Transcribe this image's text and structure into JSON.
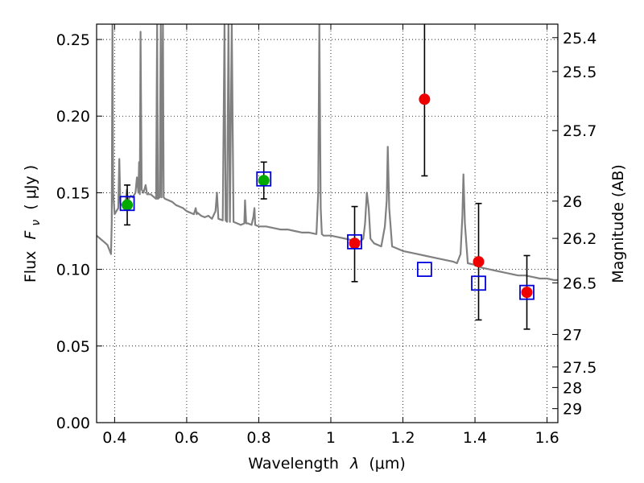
{
  "chart_data": {
    "type": "scatter",
    "title": "",
    "xlabel_text": "Wavelength",
    "xlabel_symbol": "λ",
    "xlabel_unit": "(μm)",
    "ylabel_text": "Flux",
    "ylabel_symbol": "F",
    "ylabel_symbol_sub": "ν",
    "ylabel_unit": "( μJy )",
    "y2label": "Magnitude (AB)",
    "xlim": [
      0.35,
      1.63
    ],
    "ylim": [
      0.0,
      0.26
    ],
    "grid": true,
    "grid_style": "dotted",
    "x_ticks": [
      0.4,
      0.6,
      0.8,
      1.0,
      1.2,
      1.4,
      1.6
    ],
    "x_tick_labels": [
      "0.4",
      "0.6",
      "0.8",
      "1",
      "1.2",
      "1.4",
      "1.6"
    ],
    "y_ticks": [
      0.0,
      0.05,
      0.1,
      0.15,
      0.2,
      0.25
    ],
    "y_tick_labels": [
      "0.00",
      "0.05",
      "0.10",
      "0.15",
      "0.20",
      "0.25"
    ],
    "y2_tick_labels": [
      "25.4",
      "25.5",
      "25.7",
      "26",
      "26.2",
      "26.5",
      "27",
      "27.5",
      "28",
      "29"
    ],
    "y2_tick_values": [
      25.4,
      25.5,
      25.7,
      26,
      26.2,
      26.5,
      27,
      27.5,
      28,
      29
    ],
    "colors": {
      "model": "#808080",
      "red": "#ee0000",
      "green": "#00aa00",
      "blue": "#0000dd",
      "errorbar": "#000000"
    },
    "series": [
      {
        "marker": "red-circle",
        "points": [
          {
            "x": 1.066,
            "y": 0.117,
            "yerr_low": 0.092,
            "yerr_high": 0.141
          },
          {
            "x": 1.26,
            "y": 0.211,
            "yerr_low": 0.161,
            "yerr_high": 0.261
          },
          {
            "x": 1.41,
            "y": 0.105,
            "yerr_low": 0.067,
            "yerr_high": 0.143
          },
          {
            "x": 1.544,
            "y": 0.085,
            "yerr_low": 0.061,
            "yerr_high": 0.109
          }
        ]
      },
      {
        "marker": "green-circle",
        "points": [
          {
            "x": 0.435,
            "y": 0.142,
            "yerr_low": 0.129,
            "yerr_high": 0.155
          },
          {
            "x": 0.814,
            "y": 0.158,
            "yerr_low": 0.146,
            "yerr_high": 0.17
          }
        ]
      },
      {
        "marker": "blue-open-square",
        "points": [
          {
            "x": 0.435,
            "y": 0.143
          },
          {
            "x": 0.814,
            "y": 0.159
          },
          {
            "x": 1.066,
            "y": 0.118
          },
          {
            "x": 1.26,
            "y": 0.1
          },
          {
            "x": 1.41,
            "y": 0.091
          },
          {
            "x": 1.544,
            "y": 0.085
          }
        ]
      },
      {
        "marker": "grey-line",
        "points": [
          [
            0.35,
            0.122
          ],
          [
            0.36,
            0.12
          ],
          [
            0.37,
            0.118
          ],
          [
            0.38,
            0.116
          ],
          [
            0.385,
            0.113
          ],
          [
            0.39,
            0.11
          ],
          [
            0.392,
            0.13
          ],
          [
            0.394,
            0.26
          ],
          [
            0.396,
            0.15
          ],
          [
            0.4,
            0.136
          ],
          [
            0.405,
            0.138
          ],
          [
            0.41,
            0.14
          ],
          [
            0.413,
            0.172
          ],
          [
            0.416,
            0.143
          ],
          [
            0.42,
            0.142
          ],
          [
            0.43,
            0.143
          ],
          [
            0.434,
            0.152
          ],
          [
            0.437,
            0.145
          ],
          [
            0.445,
            0.148
          ],
          [
            0.45,
            0.147
          ],
          [
            0.458,
            0.15
          ],
          [
            0.462,
            0.16
          ],
          [
            0.466,
            0.15
          ],
          [
            0.468,
            0.17
          ],
          [
            0.47,
            0.149
          ],
          [
            0.472,
            0.255
          ],
          [
            0.475,
            0.152
          ],
          [
            0.48,
            0.15
          ],
          [
            0.486,
            0.155
          ],
          [
            0.49,
            0.149
          ],
          [
            0.5,
            0.149
          ],
          [
            0.51,
            0.147
          ],
          [
            0.515,
            0.146
          ],
          [
            0.518,
            0.26
          ],
          [
            0.52,
            0.146
          ],
          [
            0.525,
            0.147
          ],
          [
            0.528,
            0.26
          ],
          [
            0.53,
            0.147
          ],
          [
            0.534,
            0.26
          ],
          [
            0.536,
            0.147
          ],
          [
            0.54,
            0.146
          ],
          [
            0.55,
            0.145
          ],
          [
            0.56,
            0.144
          ],
          [
            0.57,
            0.142
          ],
          [
            0.58,
            0.141
          ],
          [
            0.59,
            0.14
          ],
          [
            0.6,
            0.138
          ],
          [
            0.62,
            0.136
          ],
          [
            0.625,
            0.14
          ],
          [
            0.628,
            0.136
          ],
          [
            0.63,
            0.137
          ],
          [
            0.64,
            0.135
          ],
          [
            0.65,
            0.134
          ],
          [
            0.66,
            0.135
          ],
          [
            0.67,
            0.133
          ],
          [
            0.68,
            0.138
          ],
          [
            0.684,
            0.15
          ],
          [
            0.688,
            0.133
          ],
          [
            0.7,
            0.132
          ],
          [
            0.705,
            0.26
          ],
          [
            0.708,
            0.132
          ],
          [
            0.712,
            0.131
          ],
          [
            0.716,
            0.26
          ],
          [
            0.72,
            0.131
          ],
          [
            0.725,
            0.26
          ],
          [
            0.73,
            0.131
          ],
          [
            0.74,
            0.13
          ],
          [
            0.75,
            0.129
          ],
          [
            0.76,
            0.13
          ],
          [
            0.762,
            0.145
          ],
          [
            0.765,
            0.13
          ],
          [
            0.77,
            0.13
          ],
          [
            0.78,
            0.129
          ],
          [
            0.785,
            0.134
          ],
          [
            0.788,
            0.14
          ],
          [
            0.79,
            0.129
          ],
          [
            0.8,
            0.128
          ],
          [
            0.82,
            0.128
          ],
          [
            0.84,
            0.127
          ],
          [
            0.86,
            0.126
          ],
          [
            0.88,
            0.126
          ],
          [
            0.9,
            0.125
          ],
          [
            0.92,
            0.124
          ],
          [
            0.94,
            0.124
          ],
          [
            0.96,
            0.123
          ],
          [
            0.965,
            0.15
          ],
          [
            0.968,
            0.26
          ],
          [
            0.972,
            0.14
          ],
          [
            0.975,
            0.123
          ],
          [
            0.98,
            0.122
          ],
          [
            1.0,
            0.122
          ],
          [
            1.02,
            0.121
          ],
          [
            1.04,
            0.12
          ],
          [
            1.06,
            0.119
          ],
          [
            1.08,
            0.118
          ],
          [
            1.09,
            0.12
          ],
          [
            1.095,
            0.13
          ],
          [
            1.1,
            0.15
          ],
          [
            1.105,
            0.14
          ],
          [
            1.11,
            0.12
          ],
          [
            1.12,
            0.117
          ],
          [
            1.13,
            0.116
          ],
          [
            1.14,
            0.115
          ],
          [
            1.15,
            0.128
          ],
          [
            1.155,
            0.145
          ],
          [
            1.158,
            0.18
          ],
          [
            1.162,
            0.14
          ],
          [
            1.17,
            0.115
          ],
          [
            1.18,
            0.114
          ],
          [
            1.2,
            0.112
          ],
          [
            1.22,
            0.111
          ],
          [
            1.24,
            0.11
          ],
          [
            1.26,
            0.109
          ],
          [
            1.28,
            0.108
          ],
          [
            1.3,
            0.107
          ],
          [
            1.32,
            0.106
          ],
          [
            1.34,
            0.105
          ],
          [
            1.35,
            0.104
          ],
          [
            1.36,
            0.11
          ],
          [
            1.365,
            0.135
          ],
          [
            1.368,
            0.162
          ],
          [
            1.372,
            0.13
          ],
          [
            1.38,
            0.104
          ],
          [
            1.4,
            0.103
          ],
          [
            1.42,
            0.101
          ],
          [
            1.44,
            0.1
          ],
          [
            1.46,
            0.099
          ],
          [
            1.48,
            0.098
          ],
          [
            1.5,
            0.097
          ],
          [
            1.52,
            0.096
          ],
          [
            1.54,
            0.096
          ],
          [
            1.56,
            0.095
          ],
          [
            1.58,
            0.094
          ],
          [
            1.6,
            0.094
          ],
          [
            1.62,
            0.093
          ],
          [
            1.63,
            0.093
          ]
        ]
      }
    ]
  }
}
